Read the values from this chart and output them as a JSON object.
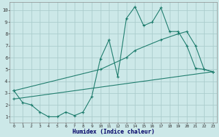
{
  "xlabel": "Humidex (Indice chaleur)",
  "background_color": "#cce8e8",
  "grid_color": "#aacccc",
  "line_color": "#1a7a6a",
  "x_ticks": [
    0,
    1,
    2,
    3,
    4,
    5,
    6,
    7,
    8,
    9,
    10,
    11,
    12,
    13,
    14,
    15,
    16,
    17,
    18,
    19,
    20,
    21,
    22,
    23
  ],
  "y_ticks": [
    1,
    2,
    3,
    4,
    5,
    6,
    7,
    8,
    9,
    10
  ],
  "xlim": [
    -0.5,
    23.5
  ],
  "ylim": [
    0.5,
    10.7
  ],
  "line1_x": [
    0,
    1,
    2,
    3,
    4,
    5,
    6,
    7,
    8,
    9,
    10,
    11,
    12,
    13,
    14,
    15,
    16,
    17,
    18,
    19,
    20,
    21,
    22,
    23
  ],
  "line1_y": [
    3.2,
    2.2,
    2.0,
    1.4,
    1.0,
    1.0,
    1.4,
    1.1,
    1.4,
    2.7,
    5.9,
    7.5,
    4.4,
    9.3,
    10.3,
    8.7,
    9.0,
    10.2,
    8.2,
    8.2,
    7.0,
    5.1,
    5.0,
    4.8
  ],
  "line2_x": [
    0,
    10,
    13,
    14,
    17,
    19,
    20,
    21,
    22,
    23
  ],
  "line2_y": [
    3.2,
    5.0,
    6.0,
    6.6,
    7.5,
    8.0,
    8.2,
    7.0,
    5.0,
    4.8
  ],
  "line3_x": [
    0,
    23
  ],
  "line3_y": [
    2.5,
    4.8
  ]
}
